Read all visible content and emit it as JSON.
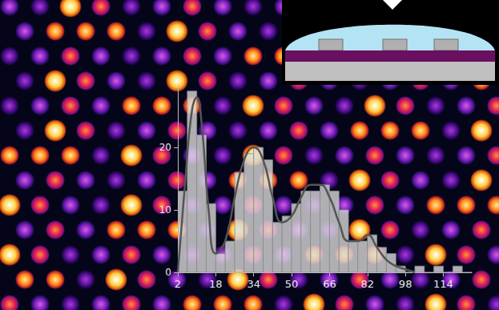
{
  "chart_data": {
    "type": "histogram",
    "bins": [
      2,
      6,
      10,
      14,
      18,
      22,
      26,
      30,
      34,
      38,
      42,
      46,
      50,
      54,
      58,
      62,
      66,
      70,
      74,
      78,
      82,
      86,
      90,
      94,
      98,
      102,
      106,
      110,
      114,
      118,
      122,
      126
    ],
    "values": [
      13,
      29,
      22,
      11,
      3,
      5,
      16,
      19,
      20,
      18,
      8,
      9,
      11,
      13,
      13,
      14,
      13,
      10,
      5,
      5,
      6,
      4,
      3,
      1,
      0,
      1,
      0,
      1,
      0,
      1,
      0
    ],
    "color": "#d9d9d9",
    "fit": {
      "type": "line",
      "color": "#555555",
      "x": [
        2,
        5,
        8,
        10,
        12,
        15,
        18,
        22,
        26,
        30,
        34,
        38,
        42,
        46,
        50,
        54,
        58,
        62,
        66,
        70,
        74,
        78,
        82,
        86,
        90,
        94,
        98,
        102
      ],
      "values": [
        0,
        14,
        26,
        28,
        24,
        10,
        3,
        5,
        12,
        18,
        20,
        18,
        12,
        8,
        9,
        12,
        14,
        14,
        12,
        8,
        5,
        5,
        6,
        4,
        2,
        1,
        0.5,
        0
      ]
    },
    "xlim": [
      2,
      126
    ],
    "xticks": [
      2,
      18,
      34,
      50,
      66,
      82,
      98,
      114
    ],
    "ylim": [
      0,
      30
    ],
    "yticks": [
      0,
      10,
      20
    ],
    "grid": false
  }
}
